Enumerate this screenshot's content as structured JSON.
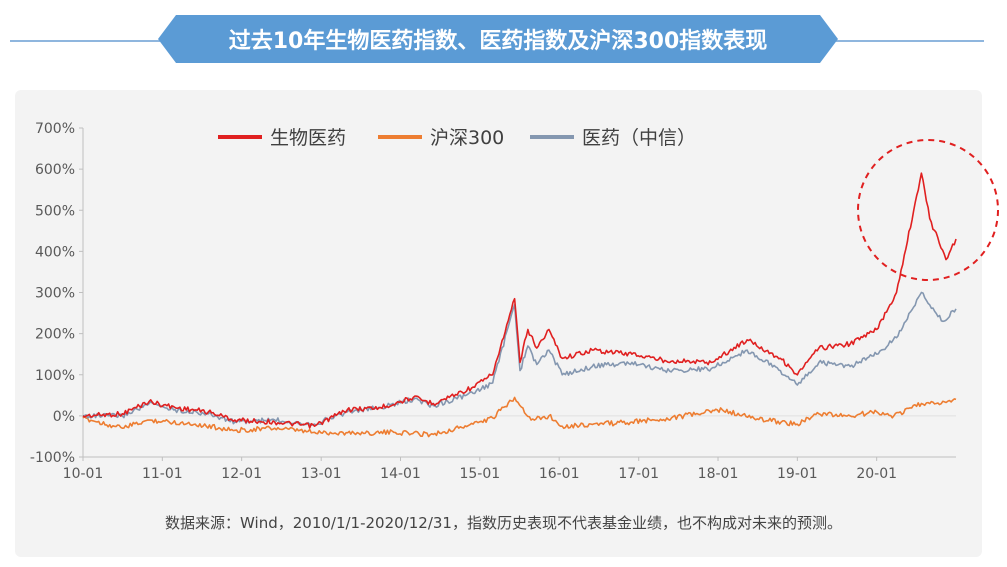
{
  "header": {
    "title": "过去10年生物医药指数、医药指数及沪深300指数表现"
  },
  "footer": {
    "note": "数据来源：Wind，2010/1/1-2020/12/31，指数历史表现不代表基金业绩，也不构成对未来的预测。"
  },
  "chart_data": {
    "type": "line",
    "title": "过去10年生物医药指数、医药指数及沪深300指数表现",
    "xlabel": "",
    "ylabel": "",
    "x_range": [
      "2010-01-01",
      "2020-12-31"
    ],
    "ylim": [
      -100,
      700
    ],
    "y_ticks": [
      -100,
      0,
      100,
      200,
      300,
      400,
      500,
      600,
      700
    ],
    "y_tick_labels": [
      "-100%",
      "0%",
      "100%",
      "200%",
      "300%",
      "400%",
      "500%",
      "600%",
      "700%"
    ],
    "x_tick_labels": [
      "10-01",
      "11-01",
      "12-01",
      "13-01",
      "14-01",
      "15-01",
      "16-01",
      "17-01",
      "18-01",
      "19-01",
      "20-01"
    ],
    "x_ticks": [
      "2010-01-01",
      "2011-01-01",
      "2012-01-01",
      "2013-01-01",
      "2014-01-01",
      "2015-01-01",
      "2016-01-01",
      "2017-01-01",
      "2018-01-01",
      "2019-01-01",
      "2020-01-01"
    ],
    "grid": false,
    "legend_position": "top",
    "annotation": "red dashed circle around 2020 peak",
    "series": [
      {
        "name": "生物医药",
        "color": "#e02020",
        "points": [
          [
            "2010-01-01",
            0
          ],
          [
            "2010-07-01",
            5
          ],
          [
            "2010-11-01",
            35
          ],
          [
            "2011-03-01",
            20
          ],
          [
            "2011-08-01",
            10
          ],
          [
            "2011-12-01",
            -10
          ],
          [
            "2012-06-01",
            -15
          ],
          [
            "2012-12-01",
            -25
          ],
          [
            "2013-05-01",
            15
          ],
          [
            "2013-10-01",
            20
          ],
          [
            "2014-03-01",
            45
          ],
          [
            "2014-06-01",
            30
          ],
          [
            "2014-12-01",
            70
          ],
          [
            "2015-03-01",
            100
          ],
          [
            "2015-06-10",
            285
          ],
          [
            "2015-07-05",
            130
          ],
          [
            "2015-08-10",
            210
          ],
          [
            "2015-09-20",
            165
          ],
          [
            "2015-11-15",
            210
          ],
          [
            "2016-01-15",
            140
          ],
          [
            "2016-06-01",
            160
          ],
          [
            "2016-12-01",
            150
          ],
          [
            "2017-05-01",
            135
          ],
          [
            "2017-12-01",
            130
          ],
          [
            "2018-05-15",
            185
          ],
          [
            "2018-10-15",
            140
          ],
          [
            "2019-01-01",
            100
          ],
          [
            "2019-04-10",
            165
          ],
          [
            "2019-09-01",
            175
          ],
          [
            "2020-01-01",
            210
          ],
          [
            "2020-04-01",
            300
          ],
          [
            "2020-07-25",
            590
          ],
          [
            "2020-09-01",
            480
          ],
          [
            "2020-10-15",
            420
          ],
          [
            "2020-11-15",
            380
          ],
          [
            "2020-12-31",
            430
          ]
        ]
      },
      {
        "name": "沪深300",
        "color": "#ed7d31",
        "points": [
          [
            "2010-01-01",
            -5
          ],
          [
            "2010-07-01",
            -30
          ],
          [
            "2010-11-01",
            -10
          ],
          [
            "2011-06-01",
            -20
          ],
          [
            "2011-12-01",
            -35
          ],
          [
            "2012-06-01",
            -30
          ],
          [
            "2012-12-01",
            -40
          ],
          [
            "2013-06-01",
            -42
          ],
          [
            "2013-12-01",
            -40
          ],
          [
            "2014-06-01",
            -45
          ],
          [
            "2014-12-01",
            -20
          ],
          [
            "2015-03-01",
            -5
          ],
          [
            "2015-06-10",
            45
          ],
          [
            "2015-08-25",
            -10
          ],
          [
            "2015-11-15",
            0
          ],
          [
            "2016-01-15",
            -25
          ],
          [
            "2016-12-01",
            -15
          ],
          [
            "2017-06-01",
            -5
          ],
          [
            "2018-01-20",
            15
          ],
          [
            "2018-06-01",
            -5
          ],
          [
            "2018-12-31",
            -20
          ],
          [
            "2019-04-10",
            5
          ],
          [
            "2019-09-01",
            0
          ],
          [
            "2020-01-01",
            10
          ],
          [
            "2020-03-20",
            0
          ],
          [
            "2020-07-25",
            30
          ],
          [
            "2020-10-01",
            30
          ],
          [
            "2020-12-31",
            40
          ]
        ]
      },
      {
        "name": "医药（中信）",
        "color": "#8497b0",
        "points": [
          [
            "2010-01-01",
            0
          ],
          [
            "2010-07-01",
            0
          ],
          [
            "2010-11-01",
            30
          ],
          [
            "2011-03-01",
            15
          ],
          [
            "2011-08-01",
            5
          ],
          [
            "2011-12-01",
            -15
          ],
          [
            "2012-06-01",
            -10
          ],
          [
            "2012-12-01",
            -20
          ],
          [
            "2013-05-01",
            10
          ],
          [
            "2013-10-01",
            20
          ],
          [
            "2014-03-01",
            40
          ],
          [
            "2014-06-01",
            25
          ],
          [
            "2014-12-01",
            55
          ],
          [
            "2015-03-01",
            80
          ],
          [
            "2015-06-10",
            270
          ],
          [
            "2015-07-05",
            110
          ],
          [
            "2015-08-10",
            170
          ],
          [
            "2015-09-20",
            125
          ],
          [
            "2015-11-15",
            160
          ],
          [
            "2016-01-15",
            100
          ],
          [
            "2016-06-01",
            120
          ],
          [
            "2016-12-01",
            130
          ],
          [
            "2017-05-01",
            110
          ],
          [
            "2017-12-01",
            115
          ],
          [
            "2018-05-15",
            160
          ],
          [
            "2018-10-15",
            110
          ],
          [
            "2019-01-01",
            75
          ],
          [
            "2019-04-10",
            130
          ],
          [
            "2019-09-01",
            120
          ],
          [
            "2020-01-01",
            150
          ],
          [
            "2020-04-01",
            190
          ],
          [
            "2020-07-25",
            300
          ],
          [
            "2020-09-01",
            270
          ],
          [
            "2020-11-01",
            230
          ],
          [
            "2020-12-31",
            260
          ]
        ]
      }
    ]
  }
}
